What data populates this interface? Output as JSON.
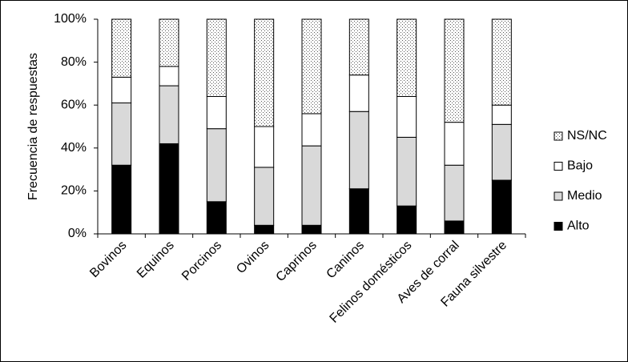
{
  "chart_data": {
    "type": "stacked_bar",
    "y_label": "Frecuencia de respuestas",
    "categories": [
      "Bovinos",
      "Equinos",
      "Porcinos",
      "Ovinos",
      "Caprinos",
      "Caninos",
      "Felinos domésticos",
      "Aves de corral",
      "Fauna silvestre"
    ],
    "series": [
      {
        "name": "Alto",
        "color": "#000000",
        "values": [
          32,
          42,
          15,
          4,
          4,
          21,
          13,
          6,
          25
        ]
      },
      {
        "name": "Medio",
        "color": "#d9d9d9",
        "values": [
          29,
          27,
          34,
          27,
          37,
          36,
          32,
          26,
          26
        ]
      },
      {
        "name": "Bajo",
        "color": "#ffffff",
        "values": [
          12,
          9,
          15,
          19,
          15,
          17,
          19,
          20,
          9
        ]
      },
      {
        "name": "NS/NC",
        "color": "#ffffff",
        "pattern": "dotted",
        "values": [
          27,
          22,
          36,
          50,
          44,
          26,
          36,
          48,
          40
        ]
      }
    ],
    "ylim": [
      0,
      100
    ],
    "yticks": [
      {
        "value": 0,
        "label": "0%"
      },
      {
        "value": 20,
        "label": "20%"
      },
      {
        "value": 40,
        "label": "40%"
      },
      {
        "value": 60,
        "label": "60%"
      },
      {
        "value": 80,
        "label": "80%"
      },
      {
        "value": 100,
        "label": "100%"
      }
    ],
    "legend": "right"
  }
}
